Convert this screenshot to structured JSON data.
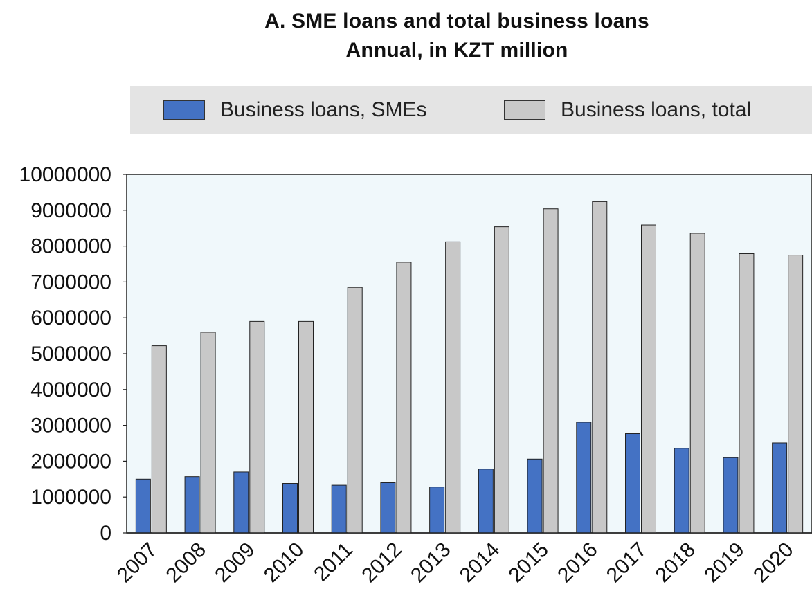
{
  "chart_data": {
    "type": "bar",
    "title": "A. SME loans and total business loans",
    "subtitle": "Annual, in KZT million",
    "xlabel": "",
    "ylabel": "",
    "categories": [
      "2007",
      "2008",
      "2009",
      "2010",
      "2011",
      "2012",
      "2013",
      "2014",
      "2015",
      "2016",
      "2017",
      "2018",
      "2019",
      "2020"
    ],
    "series": [
      {
        "name": "Business loans, SMEs",
        "color": "#4472c4",
        "values": [
          1500000,
          1570000,
          1700000,
          1380000,
          1330000,
          1400000,
          1280000,
          1780000,
          2060000,
          3090000,
          2770000,
          2360000,
          2100000,
          2510000
        ]
      },
      {
        "name": "Business loans, total",
        "color": "#c8c8c8",
        "values": [
          5220000,
          5600000,
          5900000,
          5900000,
          6850000,
          7550000,
          8120000,
          8540000,
          9040000,
          9240000,
          8590000,
          8360000,
          7790000,
          7750000
        ]
      }
    ],
    "ylim": [
      0,
      10000000
    ],
    "yticks": [
      "0",
      "1000000",
      "2000000",
      "3000000",
      "4000000",
      "5000000",
      "6000000",
      "7000000",
      "8000000",
      "9000000",
      "10000000"
    ],
    "grid": false,
    "legend_position": "top",
    "plot_background": "#f0f8fb"
  }
}
